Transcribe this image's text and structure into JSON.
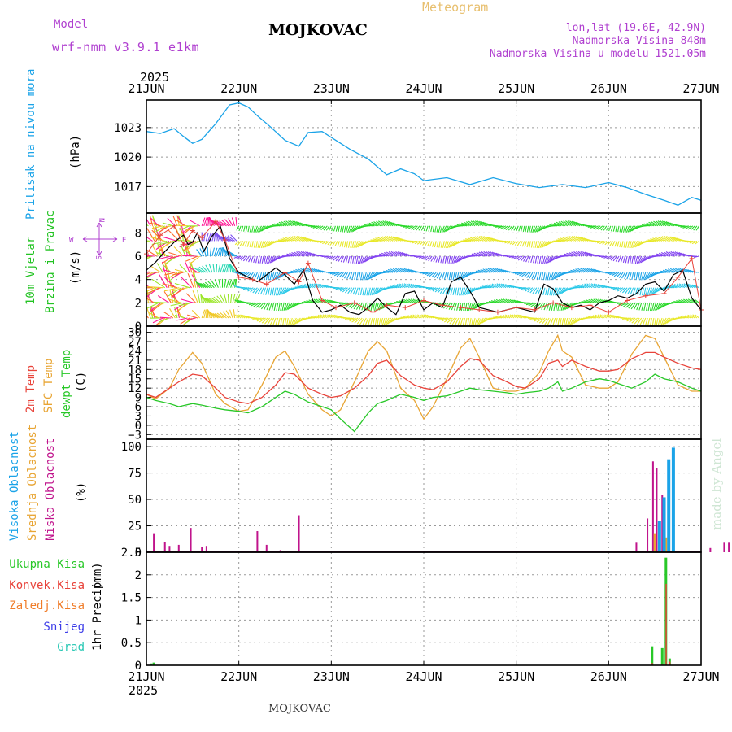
{
  "header": {
    "model_label": "Model",
    "model_name": "wrf-nmm_v3.9.1 e1km",
    "city": "MOJKOVAC",
    "meteogram": "Meteogram",
    "lonlat": "lon,lat (19.6E, 42.9N)",
    "elevation": "Nadmorska Visina 848m",
    "model_elevation": "Nadmorska Visina u modelu 1521.05m",
    "year": "2025",
    "footer_city": "MOJKOVAC",
    "watermark": "made by Angel"
  },
  "colors": {
    "pressure": "#1aa3e8",
    "wind_label": "#22c322",
    "temp2m": "#e8433a",
    "sfc": "#e8a534",
    "dewpt": "#28c828",
    "high_cloud": "#1aa3e8",
    "mid_cloud": "#e8a534",
    "low_cloud": "#c0148c",
    "total_precip": "#28c828",
    "convective": "#e8433a",
    "freezing": "#f07c28",
    "snow": "#3c3ce8",
    "hail": "#28c8b4",
    "purple": "#b040d0"
  },
  "chart_data": [
    {
      "type": "line",
      "name": "pressure",
      "ylabel": "Pritisak na nivou mora",
      "unit": "(hPa)",
      "x_ticks": [
        "21JUN",
        "22JUN",
        "23JUN",
        "24JUN",
        "25JUN",
        "26JUN",
        "27JUN"
      ],
      "ylim": [
        1014.3,
        1025.8
      ],
      "y_ticks": [
        1017,
        1020,
        1023
      ],
      "x_day": [
        0,
        0.15,
        0.3,
        0.4,
        0.5,
        0.6,
        0.75,
        0.9,
        1.0,
        1.1,
        1.2,
        1.35,
        1.5,
        1.65,
        1.75,
        1.9,
        2.0,
        2.2,
        2.4,
        2.6,
        2.75,
        2.9,
        3.0,
        3.25,
        3.5,
        3.75,
        4.0,
        4.25,
        4.5,
        4.75,
        5.0,
        5.2,
        5.4,
        5.6,
        5.75,
        5.9,
        6.0
      ],
      "values": [
        1022.6,
        1022.4,
        1022.9,
        1022.1,
        1021.4,
        1021.8,
        1023.4,
        1025.3,
        1025.5,
        1025.1,
        1024.2,
        1023.0,
        1021.7,
        1021.1,
        1022.5,
        1022.6,
        1022.0,
        1020.8,
        1019.8,
        1018.2,
        1018.8,
        1018.3,
        1017.6,
        1017.9,
        1017.2,
        1017.9,
        1017.3,
        1016.9,
        1017.2,
        1016.9,
        1017.4,
        1016.9,
        1016.2,
        1015.6,
        1015.1,
        1015.9,
        1015.6
      ]
    },
    {
      "type": "line",
      "name": "wind",
      "ylabel_1": "10m Vjetar",
      "ylabel_2": "Brzina i Pravac",
      "unit": "(m/s)",
      "compass": {
        "n": "N",
        "e": "E",
        "s": "S",
        "w": "W"
      },
      "ylim": [
        0,
        9.7
      ],
      "y_ticks": [
        0,
        2,
        4,
        6,
        8
      ],
      "x_day": [
        0,
        0.1,
        0.2,
        0.3,
        0.4,
        0.45,
        0.5,
        0.55,
        0.62,
        0.7,
        0.8,
        0.9,
        1.0,
        1.1,
        1.2,
        1.3,
        1.4,
        1.5,
        1.6,
        1.7,
        1.8,
        1.9,
        2.0,
        2.1,
        2.2,
        2.3,
        2.4,
        2.5,
        2.6,
        2.7,
        2.8,
        2.9,
        3.0,
        3.1,
        3.2,
        3.3,
        3.4,
        3.5,
        3.6,
        3.7,
        3.8,
        3.9,
        4.0,
        4.1,
        4.2,
        4.3,
        4.4,
        4.5,
        4.6,
        4.7,
        4.8,
        4.9,
        5.0,
        5.1,
        5.2,
        5.3,
        5.4,
        5.5,
        5.6,
        5.7,
        5.8,
        5.9,
        6.0
      ],
      "values": [
        4.8,
        5.5,
        6.4,
        7.2,
        7.8,
        7.0,
        7.2,
        8.0,
        6.4,
        7.6,
        8.6,
        5.8,
        4.6,
        4.2,
        3.8,
        4.4,
        5.0,
        4.4,
        3.6,
        4.8,
        2.2,
        1.2,
        1.4,
        1.8,
        1.2,
        1.0,
        1.6,
        2.4,
        1.6,
        1.0,
        2.8,
        3.0,
        1.4,
        2.0,
        1.6,
        3.8,
        4.2,
        3.0,
        1.6,
        1.4,
        1.2,
        1.4,
        1.6,
        1.4,
        1.2,
        3.6,
        3.2,
        2.0,
        1.6,
        1.8,
        1.4,
        2.0,
        2.2,
        2.6,
        2.4,
        2.8,
        3.6,
        3.8,
        3.0,
        4.4,
        4.8,
        2.4,
        1.4
      ],
      "gust_x_day": [
        0,
        0.15,
        0.3,
        0.4,
        0.5,
        0.6,
        0.75,
        0.85,
        1.0,
        1.15,
        1.3,
        1.5,
        1.65,
        1.75,
        1.9,
        2.05,
        2.25,
        2.45,
        2.6,
        2.8,
        3.0,
        3.2,
        3.4,
        3.6,
        3.8,
        4.0,
        4.2,
        4.4,
        4.6,
        4.8,
        5.0,
        5.2,
        5.4,
        5.6,
        5.75,
        5.9,
        6.0
      ],
      "gust_values": [
        6.2,
        7.8,
        8.6,
        7.0,
        8.2,
        7.6,
        9.0,
        7.4,
        4.2,
        4.0,
        3.6,
        4.6,
        3.8,
        5.4,
        2.2,
        1.6,
        2.0,
        1.2,
        1.8,
        1.6,
        2.2,
        1.8,
        1.6,
        1.4,
        1.2,
        1.6,
        1.4,
        2.0,
        1.6,
        1.8,
        1.2,
        2.2,
        2.6,
        2.8,
        4.2,
        5.8,
        1.4
      ]
    },
    {
      "type": "line",
      "name": "temperature",
      "ylabel_1": "2m Temp",
      "ylabel_2": "SFC Temp",
      "ylabel_3": "dewpt Temp",
      "unit": "(C)",
      "ylim": [
        -4.5,
        32
      ],
      "y_ticks": [
        -3,
        0,
        3,
        6,
        9,
        12,
        15,
        18,
        21,
        24,
        27,
        30
      ],
      "y_tick_labels": [
        "−3",
        "0",
        "3",
        "6",
        "9",
        "12",
        "15",
        "18",
        "21",
        "24",
        "27",
        "30"
      ],
      "x_day": [
        0,
        0.1,
        0.25,
        0.35,
        0.5,
        0.6,
        0.75,
        0.85,
        1.0,
        1.1,
        1.25,
        1.4,
        1.5,
        1.6,
        1.75,
        1.9,
        2.0,
        2.1,
        2.25,
        2.4,
        2.5,
        2.6,
        2.75,
        2.9,
        3.0,
        3.1,
        3.25,
        3.4,
        3.5,
        3.6,
        3.75,
        3.9,
        4.0,
        4.1,
        4.25,
        4.35,
        4.45,
        4.5,
        4.6,
        4.75,
        4.9,
        5.0,
        5.1,
        5.25,
        5.4,
        5.5,
        5.6,
        5.75,
        5.9,
        6.0
      ],
      "t2m": [
        10,
        9,
        12,
        14,
        16.5,
        16,
        12,
        9,
        7.5,
        7,
        9,
        13,
        17,
        16.5,
        12,
        10,
        9,
        9.5,
        12,
        16,
        20,
        21,
        16,
        13,
        12,
        11.5,
        14,
        19,
        21.5,
        21,
        16,
        14,
        12.5,
        12,
        15,
        20,
        21,
        19,
        21,
        19,
        17.5,
        17.5,
        18,
        21.5,
        23.5,
        23.5,
        22,
        20,
        18.5,
        18
      ],
      "sfc": [
        10,
        8.5,
        12,
        18,
        23.5,
        20,
        10,
        7,
        4.5,
        5,
        13,
        22,
        24,
        19,
        10,
        5,
        3,
        5,
        14,
        24,
        27,
        24,
        12,
        8,
        2,
        6,
        15,
        25,
        28,
        22,
        12,
        11,
        11,
        12,
        17,
        24,
        29,
        24,
        22,
        13,
        12,
        12,
        14,
        23,
        29,
        28,
        22,
        13,
        11,
        11
      ],
      "dewpt": [
        9,
        8,
        7,
        6,
        7,
        6.5,
        5.5,
        5,
        4.5,
        4,
        6,
        9,
        11,
        10,
        7.5,
        6,
        5,
        2,
        -2,
        4,
        7,
        8,
        10,
        9,
        8,
        9,
        9.5,
        11,
        12,
        11.5,
        11,
        10.5,
        10,
        10.5,
        11,
        12,
        14,
        11,
        12,
        14,
        15,
        14.5,
        13.5,
        12,
        14,
        16.5,
        15,
        14,
        12,
        11
      ]
    },
    {
      "type": "bar",
      "name": "cloud",
      "ylabel_1": "Visoka Oblacnost",
      "ylabel_2": "Srednja Oblacnost",
      "ylabel_3": "Niska Oblacnost",
      "unit": "(%)",
      "ylim": [
        0,
        107
      ],
      "y_ticks": [
        0,
        25,
        50,
        75,
        100
      ],
      "high_x_day": [
        5.55,
        5.6,
        5.65,
        5.7
      ],
      "high_values": [
        30,
        52,
        88,
        99
      ],
      "mid_x_day": [
        5.5,
        5.62,
        6.4,
        6.45
      ],
      "mid_values": [
        18,
        14,
        6,
        5
      ],
      "low_x_day": [
        0.08,
        0.2,
        0.25,
        0.35,
        0.48,
        0.6,
        0.65,
        1.2,
        1.3,
        1.45,
        1.65,
        5.3,
        5.42,
        5.48,
        5.52,
        5.58,
        6.1,
        6.25,
        6.3,
        6.45
      ],
      "low_values": [
        18,
        10,
        6,
        7,
        23,
        5,
        6,
        20,
        7,
        2,
        35,
        9,
        32,
        86,
        80,
        54,
        4,
        9,
        9,
        10
      ]
    },
    {
      "type": "bar",
      "name": "precip",
      "ylabel_main": "1hr Precip",
      "unit": "(mm)",
      "legend": [
        "Ukupna Kisa",
        "Konvek.Kisa",
        "Zaledj.Kisa",
        "Snijeg",
        "Grad"
      ],
      "ylim": [
        0,
        2.5
      ],
      "y_ticks": [
        0,
        0.5,
        1,
        1.5,
        2,
        2.5
      ],
      "y_tick_labels": [
        "0",
        "0.5",
        "1",
        "1.5",
        "2",
        "2.5"
      ],
      "x_day": [
        0.05,
        0.08,
        5.47,
        5.58,
        5.62,
        5.66
      ],
      "total": [
        0.04,
        0.06,
        0.42,
        0.38,
        2.38,
        0.15
      ],
      "convective": [
        0,
        0,
        0.05,
        0.02,
        1.8,
        0.08
      ]
    }
  ]
}
